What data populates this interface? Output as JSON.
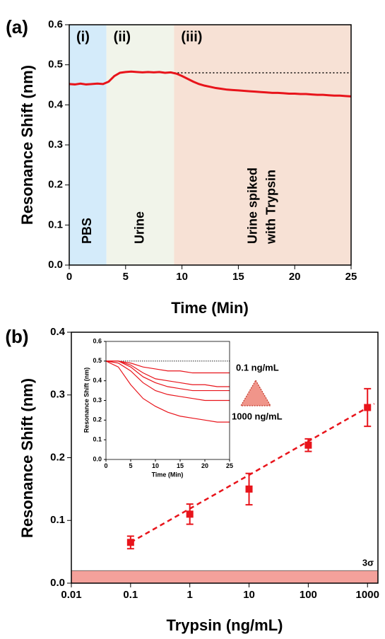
{
  "chart_data": [
    {
      "type": "line",
      "panel": "(a)",
      "xlabel": "Time (Min)",
      "ylabel": "Resonance Shift (nm)",
      "xlim": [
        0,
        25
      ],
      "xticks": [
        0,
        5,
        10,
        15,
        20,
        25
      ],
      "ylim": [
        0,
        0.6
      ],
      "yticks": [
        {
          "value": 0,
          "label": "0.0"
        },
        0.1,
        0.2,
        0.3,
        0.4,
        0.5,
        0.6
      ],
      "regions": [
        {
          "label": "(i)",
          "text": [
            "PBS"
          ],
          "from": 0,
          "to": 3.3,
          "color": "#d4ebfa"
        },
        {
          "label": "(ii)",
          "text": [
            "Urine"
          ],
          "from": 3.3,
          "to": 9.3,
          "color": "#f1f4ea"
        },
        {
          "label": "(iii)",
          "text": [
            "Urine spiked",
            "with Trypsin"
          ],
          "from": 9.3,
          "to": 25,
          "color": "#f7e1d5"
        }
      ],
      "reference_line": {
        "y": 0.48,
        "x": [
          9.3,
          25
        ]
      },
      "x": [
        0,
        0.5,
        1,
        1.5,
        2,
        2.5,
        3,
        3.5,
        4,
        4.5,
        5,
        5.5,
        6,
        6.5,
        7,
        7.5,
        8,
        8.5,
        9,
        9.5,
        10,
        10.5,
        11,
        11.5,
        12,
        12.5,
        13,
        13.5,
        14,
        14.5,
        15,
        15.5,
        16,
        16.5,
        17,
        17.5,
        18,
        18.5,
        19,
        19.5,
        20,
        20.5,
        21,
        21.5,
        22,
        22.5,
        23,
        23.5,
        24,
        24.5,
        25
      ],
      "series": [
        {
          "color": "#e8141b",
          "values": [
            0.452,
            0.451,
            0.453,
            0.451,
            0.452,
            0.453,
            0.452,
            0.458,
            0.472,
            0.48,
            0.482,
            0.483,
            0.482,
            0.481,
            0.482,
            0.481,
            0.482,
            0.48,
            0.481,
            0.478,
            0.472,
            0.465,
            0.458,
            0.452,
            0.448,
            0.445,
            0.442,
            0.44,
            0.438,
            0.437,
            0.436,
            0.435,
            0.434,
            0.433,
            0.432,
            0.431,
            0.43,
            0.43,
            0.429,
            0.428,
            0.428,
            0.427,
            0.427,
            0.426,
            0.425,
            0.425,
            0.424,
            0.423,
            0.423,
            0.422,
            0.421
          ]
        }
      ]
    },
    {
      "type": "scatter",
      "panel": "(b)",
      "xlabel": "Trypsin (ng/mL)",
      "ylabel": "Resonance Shift (nm)",
      "xscale": "log",
      "xlim": [
        0.01,
        1500
      ],
      "xticks": [
        0.01,
        0.1,
        1,
        10,
        100,
        1000
      ],
      "ylim": [
        0,
        0.4
      ],
      "yticks": [
        {
          "value": 0,
          "label": "0.0"
        },
        0.1,
        0.2,
        0.3,
        0.4
      ],
      "threshold": 0.02,
      "threshold_label": "3σ",
      "threshold_color": "#f4a19b",
      "color": "#e8141b",
      "x": [
        0.1,
        1,
        10,
        100,
        1000
      ],
      "values": [
        0.065,
        0.11,
        0.15,
        0.22,
        0.28
      ],
      "errors": [
        0.01,
        0.016,
        0.025,
        0.01,
        0.03
      ],
      "fit": {
        "x": [
          0.1,
          1300
        ],
        "values": [
          0.065,
          0.286
        ]
      }
    },
    {
      "type": "line",
      "xlabel": "Time (Min)",
      "ylabel": "Resonance Shift (nm)",
      "xlim": [
        0,
        25
      ],
      "xticks": [
        0,
        5,
        10,
        15,
        20,
        25
      ],
      "ylim": [
        0,
        0.6
      ],
      "yticks": [
        {
          "value": 0,
          "label": "0.0"
        },
        0.1,
        0.2,
        0.3,
        0.4,
        0.5,
        0.6
      ],
      "reference_line": {
        "y": 0.5,
        "x": [
          0,
          25
        ]
      },
      "annotations": [
        "0.1 ng/mL",
        "1000 ng/mL"
      ],
      "x": [
        0,
        2.5,
        5,
        7.5,
        10,
        12.5,
        15,
        17.5,
        20,
        22.5,
        25
      ],
      "series": [
        {
          "color": "#e8141b",
          "values": [
            0.5,
            0.5,
            0.49,
            0.47,
            0.46,
            0.45,
            0.45,
            0.44,
            0.44,
            0.44,
            0.44
          ]
        },
        {
          "color": "#e8141b",
          "values": [
            0.5,
            0.5,
            0.48,
            0.44,
            0.41,
            0.4,
            0.39,
            0.38,
            0.38,
            0.37,
            0.37
          ]
        },
        {
          "color": "#e8141b",
          "values": [
            0.5,
            0.5,
            0.47,
            0.42,
            0.39,
            0.37,
            0.36,
            0.35,
            0.35,
            0.35,
            0.35
          ]
        },
        {
          "color": "#e8141b",
          "values": [
            0.5,
            0.49,
            0.45,
            0.39,
            0.35,
            0.33,
            0.32,
            0.31,
            0.3,
            0.3,
            0.3
          ]
        },
        {
          "color": "#e8141b",
          "values": [
            0.5,
            0.47,
            0.38,
            0.31,
            0.27,
            0.24,
            0.22,
            0.21,
            0.2,
            0.19,
            0.19
          ]
        }
      ]
    }
  ]
}
